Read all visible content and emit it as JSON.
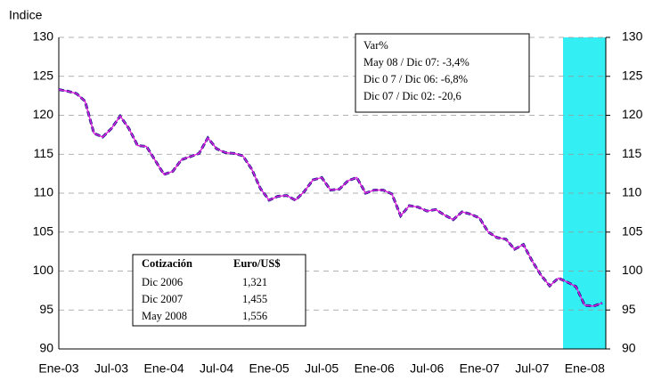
{
  "chart_data": {
    "type": "line",
    "y_label": "Indice",
    "categories": [
      "Ene-03",
      null,
      null,
      null,
      null,
      null,
      "Jul-03",
      null,
      null,
      null,
      null,
      null,
      "Ene-04",
      null,
      null,
      null,
      null,
      null,
      "Jul-04",
      null,
      null,
      null,
      null,
      null,
      "Ene-05",
      null,
      null,
      null,
      null,
      null,
      "Jul-05",
      null,
      null,
      null,
      null,
      null,
      "Ene-06",
      null,
      null,
      null,
      null,
      null,
      "Jul-06",
      null,
      null,
      null,
      null,
      null,
      "Ene-07",
      null,
      null,
      null,
      null,
      null,
      "Jul-07",
      null,
      null,
      null,
      null,
      null,
      "Ene-08",
      null,
      null
    ],
    "series": [
      {
        "color": "#e020e0",
        "values": [
          123.3,
          123.1,
          122.8,
          121.8,
          117.7,
          117.2,
          118.3,
          119.9,
          118.3,
          116.1,
          116.0,
          114.2,
          112.4,
          112.8,
          114.3,
          114.7,
          115.1,
          117.1,
          115.7,
          115.2,
          115.1,
          114.8,
          113.1,
          110.6,
          109.1,
          109.6,
          109.7,
          109.1,
          110.2,
          111.7,
          112.0,
          110.4,
          110.5,
          111.6,
          112.0,
          110.0,
          110.4,
          110.4,
          109.9,
          107.1,
          108.4,
          108.2,
          107.7,
          107.9,
          107.2,
          106.6,
          107.6,
          107.3,
          106.8,
          105.0,
          104.3,
          104.1,
          102.8,
          103.4,
          101.3,
          99.5,
          98.1,
          99.1,
          98.6,
          98.0,
          95.6,
          95.5,
          95.9
        ]
      }
    ],
    "ylim": [
      90,
      130
    ],
    "yticks": [
      90,
      95,
      100,
      105,
      110,
      115,
      120,
      125,
      130
    ],
    "y2lim": [
      90,
      130
    ],
    "y2ticks": [
      90,
      95,
      100,
      105,
      110,
      115,
      120,
      125,
      130
    ],
    "grid": true,
    "annotations": [
      "Var%",
      "May 08 / Dic 07:  -3,4%",
      "Dic 0 7 / Dic 06: -6,8%",
      "Dic 07 / Dic 02: -20,6"
    ],
    "table": {
      "header": [
        "Cotización",
        "Euro/US$"
      ],
      "rows": [
        [
          "Dic 2006",
          "1,321"
        ],
        [
          "Dic 2007",
          "1,455"
        ],
        [
          "May 2008",
          "1,556"
        ]
      ]
    }
  }
}
